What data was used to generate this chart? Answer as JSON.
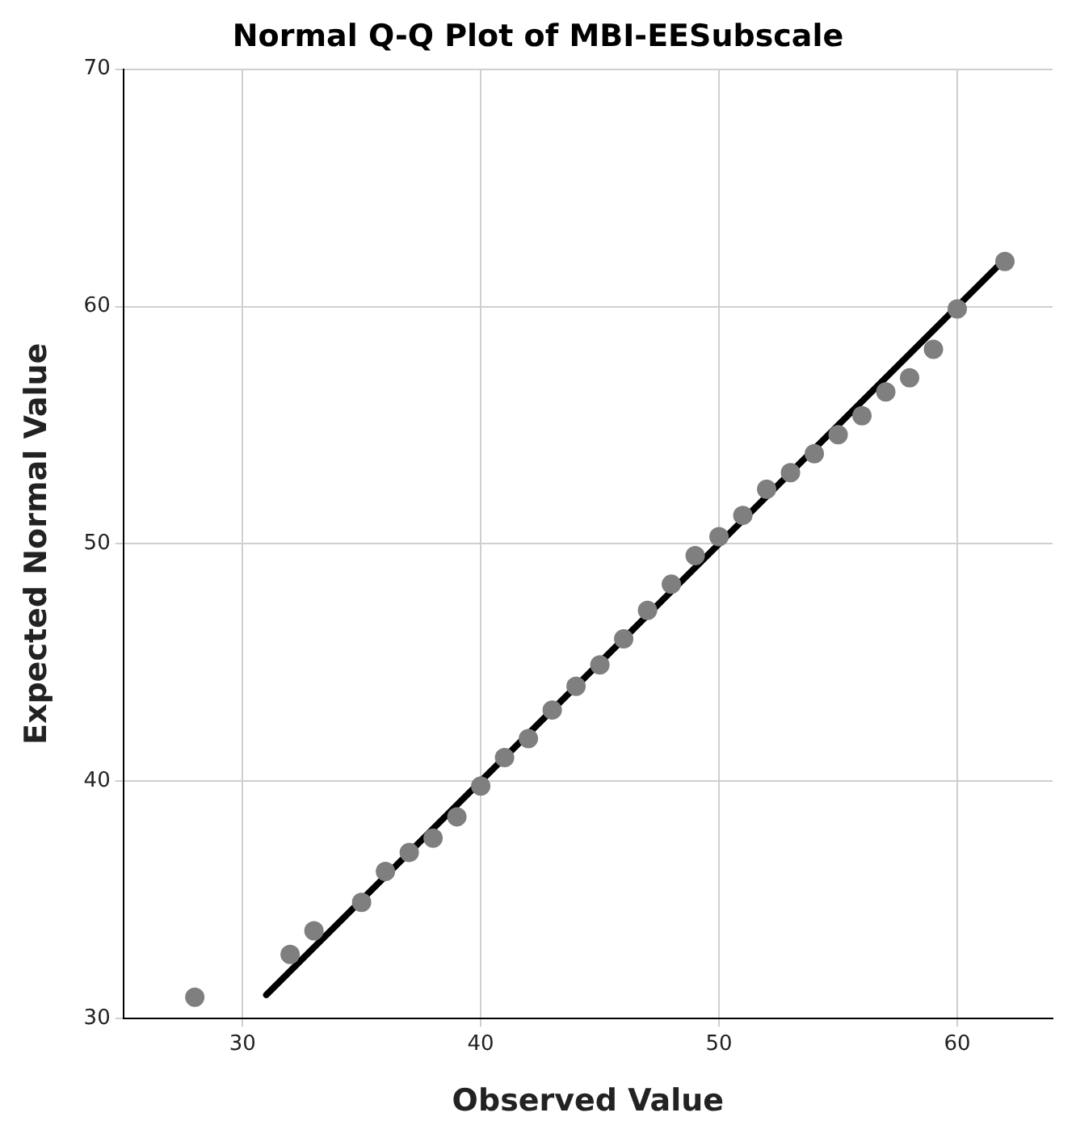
{
  "chart_data": {
    "type": "scatter",
    "title": "Normal Q-Q Plot of MBI-EESubscale",
    "xlabel": "Observed Value",
    "ylabel": "Expected Normal Value",
    "xlim": [
      25,
      64
    ],
    "xticks": [
      30,
      40,
      50,
      60
    ],
    "ylim": [
      30,
      70
    ],
    "yticks": [
      30,
      40,
      50,
      60,
      70
    ],
    "grid": true,
    "legend": false,
    "series": [
      {
        "marker": "circle",
        "color": "#7f7f7f",
        "x": [
          28,
          32,
          33,
          35,
          36,
          37,
          38,
          39,
          40,
          41,
          42,
          43,
          44,
          45,
          46,
          47,
          48,
          49,
          50,
          51,
          52,
          53,
          54,
          55,
          56,
          57,
          58,
          59,
          60,
          62
        ],
        "values": [
          30.9,
          32.7,
          33.7,
          34.9,
          36.2,
          37.0,
          37.6,
          38.5,
          39.8,
          41.0,
          41.8,
          43.0,
          44.0,
          44.9,
          46.0,
          47.2,
          48.3,
          49.5,
          50.3,
          51.2,
          52.3,
          53.0,
          53.8,
          54.6,
          55.4,
          56.4,
          57.0,
          58.2,
          59.9,
          61.9
        ]
      },
      {
        "type": "line",
        "color": "#000000",
        "x": [
          31,
          62
        ],
        "values": [
          31,
          62
        ],
        "line_style": "solid"
      }
    ]
  }
}
